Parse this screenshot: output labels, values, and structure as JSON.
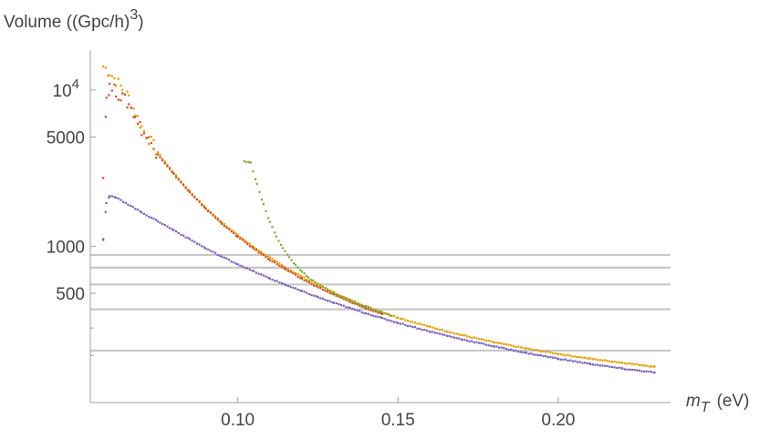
{
  "chart_data": {
    "type": "scatter",
    "xlabel": "m",
    "xlabel_sub": "T",
    "xlabel_unit": "(eV)",
    "ylabel": "Volume ((Gpc/h)",
    "ylabel_sup": "3",
    "ylabel_close": ")",
    "x_range": [
      0.054,
      0.235
    ],
    "y_range": [
      100,
      18000
    ],
    "y_scale": "log",
    "x_ticks": [
      {
        "value": 0.1,
        "label": "0.10"
      },
      {
        "value": 0.15,
        "label": "0.15"
      },
      {
        "value": 0.2,
        "label": "0.20"
      }
    ],
    "y_ticks": [
      {
        "value": 10000,
        "label": "10",
        "sup": "4"
      },
      {
        "value": 5000,
        "label": "5000"
      },
      {
        "value": 1000,
        "label": "1000"
      },
      {
        "value": 500,
        "label": "500"
      }
    ],
    "y_minor_ticks": [
      300,
      200
    ],
    "horizontal_lines": [
      880,
      730,
      570,
      395,
      215
    ],
    "colors": {
      "orange": "#e5a000",
      "red": "#e04a1a",
      "green": "#7cae2e",
      "purple": "#7a5fbf"
    },
    "series": [
      {
        "color": "orange",
        "points": [
          [
            0.058,
            14200
          ],
          [
            0.06,
            13000
          ],
          [
            0.062,
            11500
          ],
          [
            0.064,
            10200
          ],
          [
            0.066,
            9000
          ],
          [
            0.068,
            7200
          ],
          [
            0.07,
            5800
          ],
          [
            0.075,
            4000
          ],
          [
            0.08,
            2950
          ],
          [
            0.085,
            2250
          ],
          [
            0.09,
            1760
          ],
          [
            0.095,
            1430
          ],
          [
            0.1,
            1180
          ],
          [
            0.105,
            990
          ],
          [
            0.11,
            845
          ],
          [
            0.115,
            730
          ],
          [
            0.12,
            640
          ],
          [
            0.125,
            565
          ],
          [
            0.13,
            505
          ],
          [
            0.135,
            455
          ],
          [
            0.14,
            414
          ],
          [
            0.145,
            379
          ],
          [
            0.15,
            350
          ],
          [
            0.16,
            305
          ],
          [
            0.17,
            270
          ],
          [
            0.18,
            243
          ],
          [
            0.19,
            222
          ],
          [
            0.2,
            205
          ],
          [
            0.21,
            191
          ],
          [
            0.22,
            180
          ],
          [
            0.23,
            170
          ]
        ]
      },
      {
        "color": "red",
        "points": [
          [
            0.058,
            1100
          ],
          [
            0.058,
            3000
          ],
          [
            0.059,
            9000
          ],
          [
            0.06,
            10500
          ],
          [
            0.062,
            9800
          ],
          [
            0.064,
            8900
          ],
          [
            0.066,
            8100
          ],
          [
            0.068,
            6800
          ],
          [
            0.07,
            5600
          ],
          [
            0.075,
            3900
          ],
          [
            0.08,
            2900
          ],
          [
            0.085,
            2210
          ],
          [
            0.09,
            1740
          ],
          [
            0.095,
            1400
          ],
          [
            0.1,
            1150
          ],
          [
            0.105,
            965
          ],
          [
            0.11,
            822
          ],
          [
            0.115,
            710
          ],
          [
            0.12,
            620
          ],
          [
            0.125,
            548
          ],
          [
            0.13,
            490
          ],
          [
            0.135,
            442
          ],
          [
            0.14,
            402
          ],
          [
            0.145,
            369
          ]
        ]
      },
      {
        "color": "green",
        "points": [
          [
            0.102,
            3500
          ],
          [
            0.104,
            3420
          ],
          [
            0.106,
            2500
          ],
          [
            0.108,
            1850
          ],
          [
            0.11,
            1430
          ],
          [
            0.112,
            1160
          ],
          [
            0.114,
            980
          ],
          [
            0.116,
            850
          ],
          [
            0.118,
            760
          ],
          [
            0.12,
            690
          ],
          [
            0.122,
            630
          ],
          [
            0.125,
            575
          ],
          [
            0.128,
            530
          ],
          [
            0.131,
            490
          ],
          [
            0.134,
            460
          ],
          [
            0.137,
            435
          ],
          [
            0.14,
            410
          ],
          [
            0.144,
            385
          ],
          [
            0.148,
            360
          ]
        ]
      },
      {
        "color": "purple",
        "points": [
          [
            0.058,
            1120
          ],
          [
            0.059,
            1900
          ],
          [
            0.06,
            2100
          ],
          [
            0.062,
            2050
          ],
          [
            0.065,
            1900
          ],
          [
            0.07,
            1650
          ],
          [
            0.075,
            1450
          ],
          [
            0.08,
            1270
          ],
          [
            0.085,
            1110
          ],
          [
            0.09,
            970
          ],
          [
            0.095,
            860
          ],
          [
            0.1,
            768
          ],
          [
            0.105,
            690
          ],
          [
            0.11,
            623
          ],
          [
            0.115,
            566
          ],
          [
            0.12,
            516
          ],
          [
            0.125,
            473
          ],
          [
            0.13,
            435
          ],
          [
            0.135,
            402
          ],
          [
            0.14,
            373
          ],
          [
            0.145,
            347
          ],
          [
            0.15,
            324
          ],
          [
            0.16,
            285
          ],
          [
            0.17,
            254
          ],
          [
            0.18,
            229
          ],
          [
            0.19,
            208
          ],
          [
            0.2,
            191
          ],
          [
            0.21,
            177
          ],
          [
            0.22,
            165
          ],
          [
            0.23,
            156
          ]
        ]
      }
    ]
  }
}
